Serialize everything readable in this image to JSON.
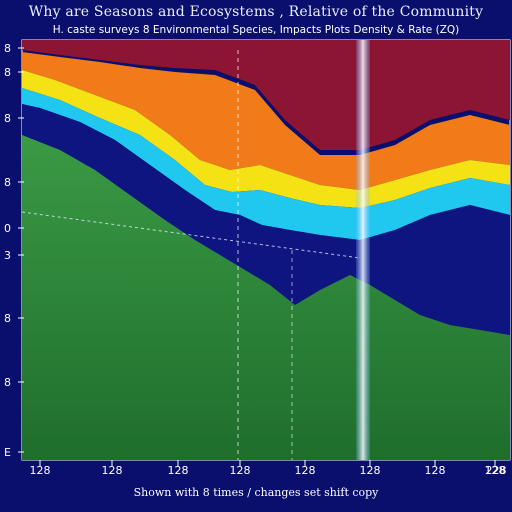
{
  "figure": {
    "title": "Why are Seasons and Ecosystems , Relative of the Community",
    "subtitle": "H. caste surveys 8 Environmental Species, Impacts Plots Density & Rate (ZQ)",
    "xlabel": "Shown with 8 times / changes set shift copy",
    "y_tick_labels": [
      "8",
      "8",
      "8",
      "8",
      "0",
      "3",
      "8",
      "8",
      "E"
    ],
    "x_tick_labels": [
      "128",
      "128",
      "128",
      "128",
      "128",
      "128",
      "128",
      "128",
      "228"
    ],
    "colors": {
      "background": "#0a0f6e",
      "plot_top": "#8b1533",
      "orange": "#f07b18",
      "yellow": "#f5e214",
      "cyan": "#20c8f0",
      "deep_blue": "#0e1480",
      "green": "#2a8a3c",
      "vertical_highlight": "#b8d8ff"
    }
  }
}
